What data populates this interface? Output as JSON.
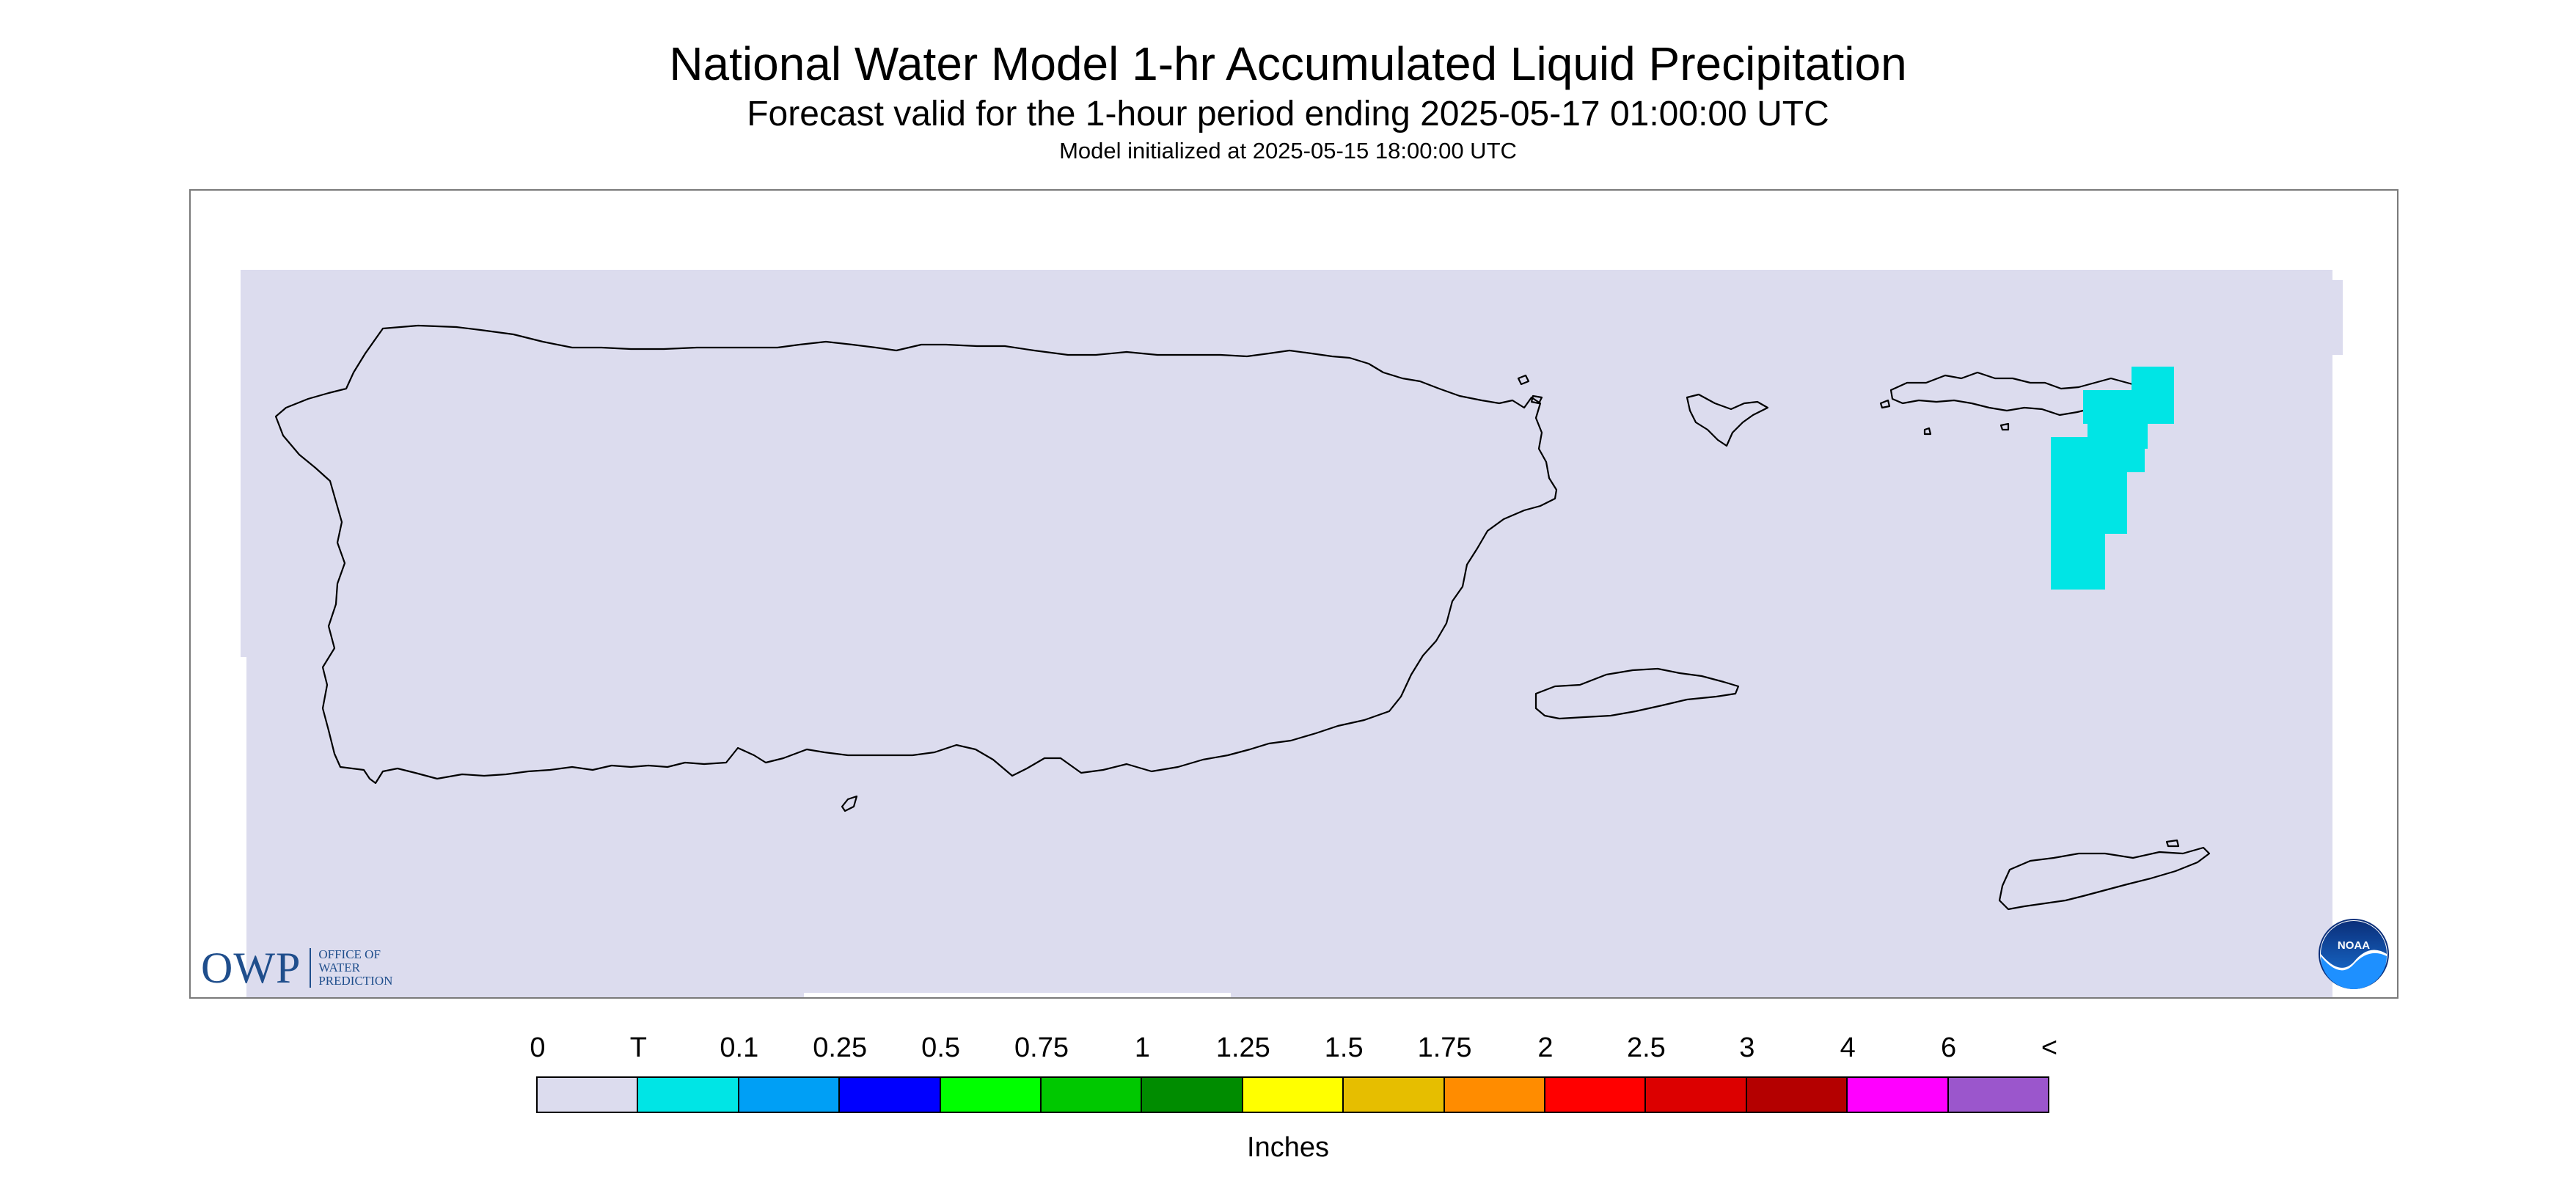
{
  "title": "National Water Model 1-hr Accumulated Liquid Precipitation",
  "subtitle": "Forecast valid for the 1-hour period ending 2025-05-17 01:00:00 UTC",
  "init_line": "Model initialized at 2025-05-15 18:00:00 UTC",
  "map": {
    "background_color": "#dcdcee",
    "frame_color": "#7a7a7a",
    "outline_color": "#000000",
    "precip_color": "#00e5e5"
  },
  "logos": {
    "owp_mark": "OWP",
    "owp_line1": "OFFICE OF",
    "owp_line2": "WATER",
    "owp_line3": "PREDICTION",
    "noaa": "NOAA"
  },
  "legend": {
    "unit": "Inches",
    "ticks": [
      "0",
      "T",
      "0.1",
      "0.25",
      "0.5",
      "0.75",
      "1",
      "1.25",
      "1.5",
      "1.75",
      "2",
      "2.5",
      "3",
      "4",
      "6",
      "<"
    ],
    "colors": [
      "#dcdcee",
      "#00e5e5",
      "#009ff5",
      "#0000ff",
      "#00ff00",
      "#00c800",
      "#008c00",
      "#ffff00",
      "#e6be00",
      "#ff8c00",
      "#ff0000",
      "#dc0000",
      "#b40000",
      "#ff00ff",
      "#9b56cc"
    ]
  }
}
